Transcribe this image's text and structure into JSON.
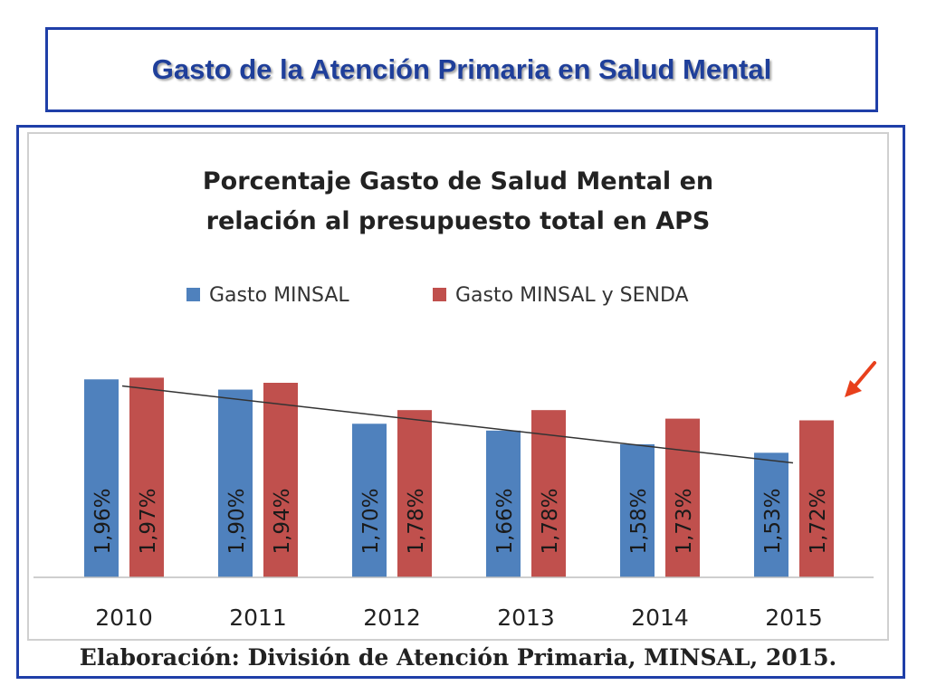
{
  "slide": {
    "title": "Gasto de la Atención Primaria en Salud Mental"
  },
  "chart_data": {
    "type": "bar",
    "title_lines": [
      "Porcentaje Gasto de Salud Mental  en",
      "relación al presupuesto total en APS"
    ],
    "categories": [
      "2010",
      "2011",
      "2012",
      "2013",
      "2014",
      "2015"
    ],
    "series": [
      {
        "name": "Gasto MINSAL",
        "color": "#4f81bd",
        "values": [
          1.96,
          1.9,
          1.7,
          1.66,
          1.58,
          1.53
        ],
        "labels": [
          "1,96%",
          "1,90%",
          "1,70%",
          "1,66%",
          "1,58%",
          "1,53%"
        ]
      },
      {
        "name": "Gasto MINSAL y SENDA",
        "color": "#c0504d",
        "values": [
          1.97,
          1.94,
          1.78,
          1.78,
          1.73,
          1.72
        ],
        "labels": [
          "1,97%",
          "1,94%",
          "1,78%",
          "1,78%",
          "1,73%",
          "1,72%"
        ]
      }
    ],
    "trendline": {
      "series": "Gasto MINSAL",
      "type": "linear"
    },
    "legend_position": "top",
    "gridlines": false,
    "data_labels": "inside-vertical",
    "annotation": "red arrow pointing to 2015 Gasto MINSAL y SENDA bar",
    "source": "Elaboración: División de Atención Primaria, MINSAL, 2015."
  },
  "colors": {
    "frame_border": "#1f3fa8",
    "title_text": "#1f3f9a",
    "arrow": "#e8401c"
  }
}
